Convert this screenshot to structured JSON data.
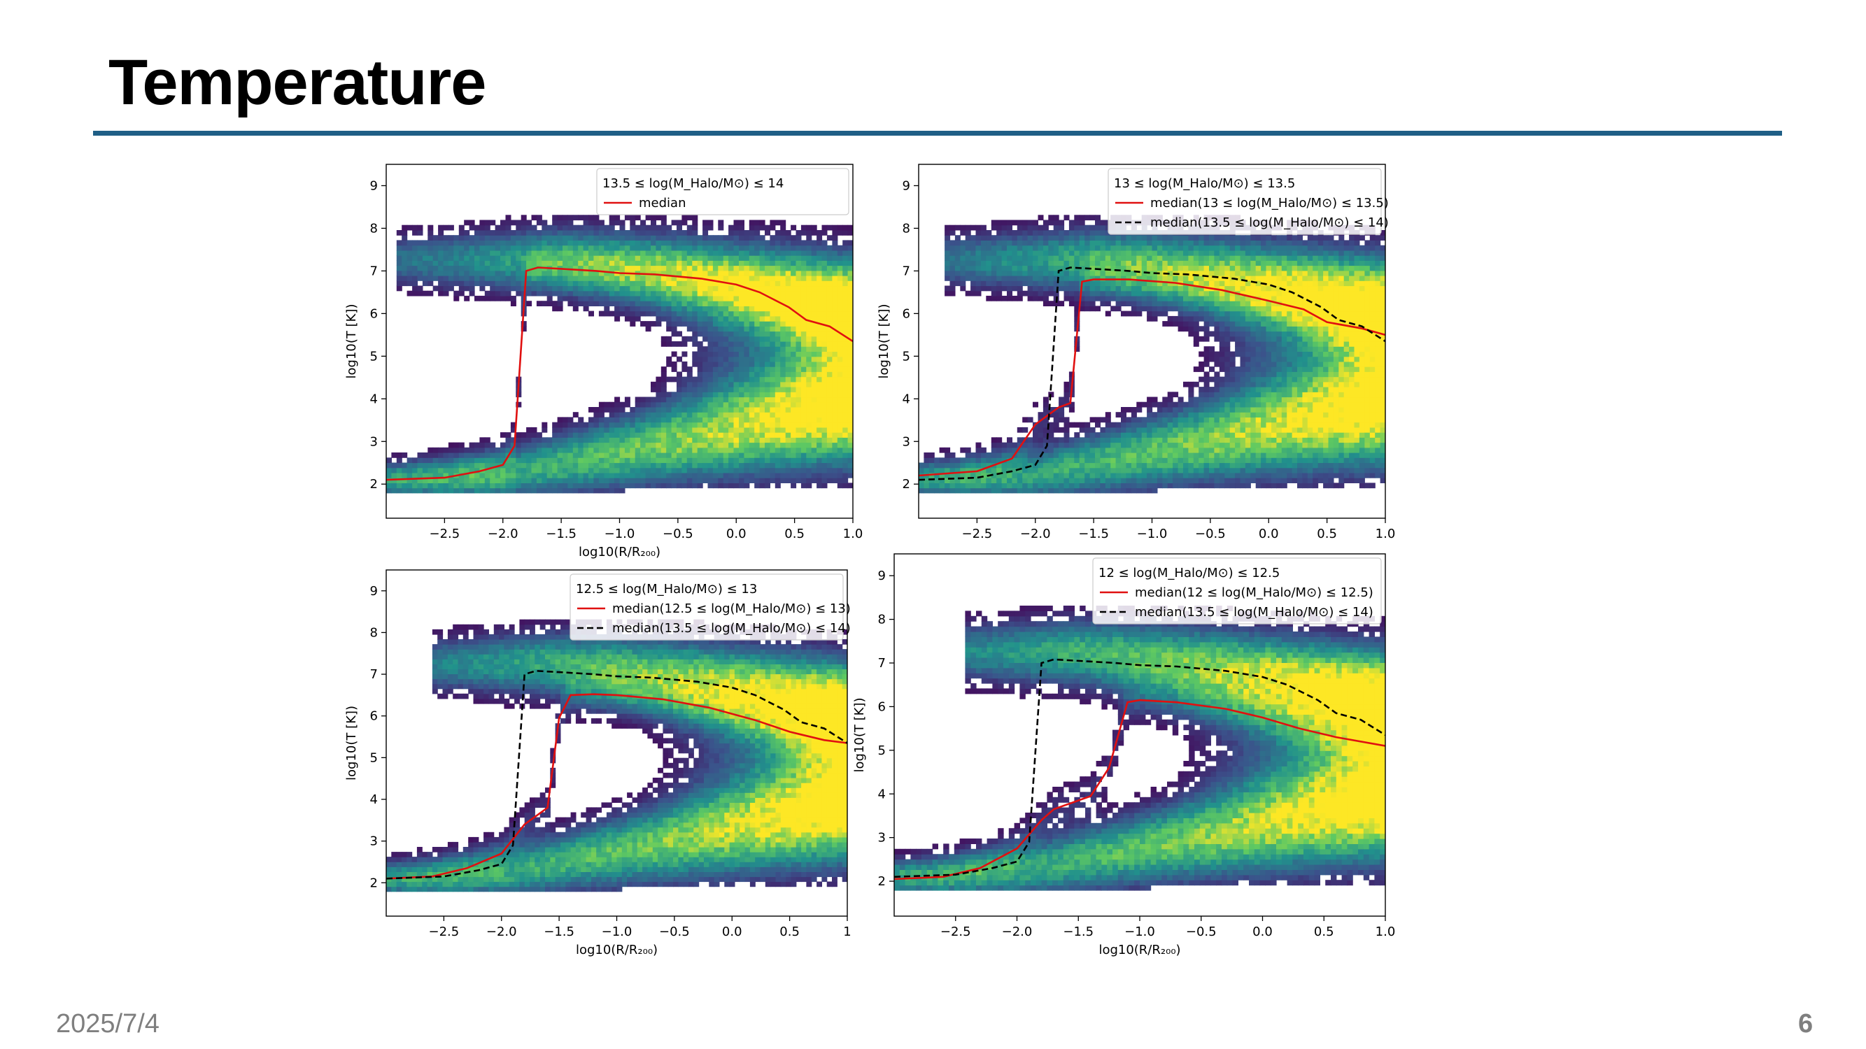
{
  "slide": {
    "title": "Temperature",
    "date": "2025/7/4",
    "page_number": "6"
  },
  "colors": {
    "rule": "#1f5f86",
    "median_red": "#e01010",
    "median_black": "#000000",
    "colormap": [
      "#440154",
      "#3b528b",
      "#21918c",
      "#5ec962",
      "#fde725"
    ]
  },
  "chart_data": [
    {
      "type": "heatmap",
      "title": "",
      "xlabel": "log10(R/R₂₀₀)",
      "ylabel": "log10(T [K])",
      "xlim": [
        -3.0,
        1.0
      ],
      "ylim": [
        1.2,
        9.5
      ],
      "xticks": [
        -2.5,
        -2.0,
        -1.5,
        -1.0,
        -0.5,
        0.0,
        0.5,
        1.0
      ],
      "xtick_labels": [
        "−2.5",
        "−2.0",
        "−1.5",
        "−1.0",
        "−0.5",
        "0.0",
        "0.5",
        "1.0"
      ],
      "yticks": [
        2,
        3,
        4,
        5,
        6,
        7,
        8,
        9
      ],
      "legend": {
        "title": "13.5 ≤ log(M_Halo/M⊙) ≤ 14",
        "entries": [
          {
            "label": "median",
            "style": "solid",
            "color": "#e01010"
          }
        ]
      },
      "series": [
        {
          "name": "median",
          "style": "solid",
          "x": [
            -3.0,
            -2.5,
            -2.2,
            -2.0,
            -1.9,
            -1.8,
            -1.7,
            -1.5,
            -1.2,
            -1.0,
            -0.7,
            -0.3,
            0.0,
            0.2,
            0.45,
            0.6,
            0.8,
            1.0
          ],
          "y": [
            2.1,
            2.15,
            2.3,
            2.45,
            2.9,
            7.0,
            7.08,
            7.05,
            7.0,
            6.95,
            6.92,
            6.82,
            6.68,
            6.5,
            6.15,
            5.85,
            5.7,
            5.35
          ]
        }
      ]
    },
    {
      "type": "heatmap",
      "title": "",
      "xlabel": "",
      "ylabel": "log10(T [K])",
      "xlim": [
        -3.0,
        1.0
      ],
      "ylim": [
        1.2,
        9.5
      ],
      "xticks": [
        -2.5,
        -2.0,
        -1.5,
        -1.0,
        -0.5,
        0.0,
        0.5,
        1.0
      ],
      "xtick_labels": [
        "−2.5",
        "−2.0",
        "−1.5",
        "−1.0",
        "−0.5",
        "0.0",
        "0.5",
        "1.0"
      ],
      "yticks": [
        2,
        3,
        4,
        5,
        6,
        7,
        8,
        9
      ],
      "legend": {
        "title": "13 ≤ log(M_Halo/M⊙) ≤ 13.5",
        "entries": [
          {
            "label": "median(13 ≤ log(M_Halo/M⊙) ≤ 13.5)",
            "style": "solid",
            "color": "#e01010"
          },
          {
            "label": "median(13.5 ≤ log(M_Halo/M⊙) ≤ 14)",
            "style": "dashed",
            "color": "#000000"
          }
        ]
      },
      "series": [
        {
          "name": "median(13 ≤ log(M_Halo/M⊙) ≤ 13.5)",
          "style": "solid",
          "x": [
            -3.0,
            -2.5,
            -2.2,
            -2.0,
            -1.8,
            -1.7,
            -1.6,
            -1.5,
            -1.2,
            -0.8,
            -0.4,
            0.0,
            0.3,
            0.5,
            0.8,
            1.0
          ],
          "y": [
            2.2,
            2.3,
            2.6,
            3.4,
            3.8,
            3.9,
            6.75,
            6.8,
            6.8,
            6.72,
            6.55,
            6.3,
            6.1,
            5.8,
            5.65,
            5.5
          ]
        },
        {
          "name": "median(13.5 ≤ log(M_Halo/M⊙) ≤ 14)",
          "style": "dashed",
          "x": [
            -3.0,
            -2.5,
            -2.2,
            -2.0,
            -1.9,
            -1.8,
            -1.7,
            -1.5,
            -1.2,
            -1.0,
            -0.7,
            -0.3,
            0.0,
            0.2,
            0.45,
            0.6,
            0.8,
            1.0
          ],
          "y": [
            2.1,
            2.15,
            2.3,
            2.45,
            2.9,
            7.0,
            7.08,
            7.05,
            7.0,
            6.95,
            6.92,
            6.82,
            6.68,
            6.5,
            6.15,
            5.85,
            5.7,
            5.35
          ]
        }
      ]
    },
    {
      "type": "heatmap",
      "title": "",
      "xlabel": "log10(R/R₂₀₀)",
      "ylabel": "log10(T [K])",
      "xlim": [
        -3.0,
        1.0
      ],
      "ylim": [
        1.2,
        9.5
      ],
      "xticks": [
        -2.5,
        -2.0,
        -1.5,
        -1.0,
        -0.5,
        0.0,
        0.5,
        1.0
      ],
      "xtick_labels": [
        "−2.5",
        "−2.0",
        "−1.5",
        "−1.0",
        "−0.5",
        "0.0",
        "0.5",
        "1"
      ],
      "yticks": [
        2,
        3,
        4,
        5,
        6,
        7,
        8,
        9
      ],
      "legend": {
        "title": "12.5 ≤ log(M_Halo/M⊙) ≤ 13",
        "entries": [
          {
            "label": "median(12.5 ≤ log(M_Halo/M⊙) ≤ 13)",
            "style": "solid",
            "color": "#e01010"
          },
          {
            "label": "median(13.5 ≤ log(M_Halo/M⊙) ≤ 14)",
            "style": "dashed",
            "color": "#000000"
          }
        ]
      },
      "series": [
        {
          "name": "median(12.5 ≤ log(M_Halo/M⊙) ≤ 13)",
          "style": "solid",
          "x": [
            -3.0,
            -2.6,
            -2.3,
            -2.0,
            -1.8,
            -1.6,
            -1.5,
            -1.4,
            -1.2,
            -1.0,
            -0.6,
            -0.2,
            0.2,
            0.5,
            0.8,
            1.0
          ],
          "y": [
            2.1,
            2.15,
            2.35,
            2.7,
            3.4,
            3.8,
            5.95,
            6.5,
            6.52,
            6.5,
            6.4,
            6.2,
            5.9,
            5.62,
            5.42,
            5.35
          ]
        },
        {
          "name": "median(13.5 ≤ log(M_Halo/M⊙) ≤ 14)",
          "style": "dashed",
          "x": [
            -3.0,
            -2.5,
            -2.2,
            -2.0,
            -1.9,
            -1.8,
            -1.7,
            -1.5,
            -1.2,
            -1.0,
            -0.7,
            -0.3,
            0.0,
            0.2,
            0.45,
            0.6,
            0.8,
            1.0
          ],
          "y": [
            2.1,
            2.15,
            2.3,
            2.45,
            2.9,
            7.0,
            7.08,
            7.05,
            7.0,
            6.95,
            6.92,
            6.82,
            6.68,
            6.5,
            6.15,
            5.85,
            5.7,
            5.35
          ]
        }
      ]
    },
    {
      "type": "heatmap",
      "title": "",
      "xlabel": "log10(R/R₂₀₀)",
      "ylabel": "log10(T [K])",
      "xlim": [
        -3.0,
        1.0
      ],
      "ylim": [
        1.2,
        9.5
      ],
      "xticks": [
        -2.5,
        -2.0,
        -1.5,
        -1.0,
        -0.5,
        0.0,
        0.5,
        1.0
      ],
      "xtick_labels": [
        "−2.5",
        "−2.0",
        "−1.5",
        "−1.0",
        "−0.5",
        "0.0",
        "0.5",
        "1.0"
      ],
      "yticks": [
        2,
        3,
        4,
        5,
        6,
        7,
        8,
        9
      ],
      "legend": {
        "title": "12 ≤ log(M_Halo/M⊙) ≤ 12.5",
        "entries": [
          {
            "label": "median(12 ≤ log(M_Halo/M⊙) ≤ 12.5)",
            "style": "solid",
            "color": "#e01010"
          },
          {
            "label": "median(13.5 ≤ log(M_Halo/M⊙) ≤ 14)",
            "style": "dashed",
            "color": "#000000"
          }
        ]
      },
      "series": [
        {
          "name": "median(12 ≤ log(M_Halo/M⊙) ≤ 12.5)",
          "style": "solid",
          "x": [
            -3.0,
            -2.6,
            -2.3,
            -2.0,
            -1.8,
            -1.7,
            -1.4,
            -1.25,
            -1.1,
            -1.0,
            -0.7,
            -0.3,
            0.0,
            0.3,
            0.6,
            1.0
          ],
          "y": [
            2.05,
            2.1,
            2.3,
            2.75,
            3.4,
            3.65,
            3.95,
            4.6,
            6.1,
            6.15,
            6.1,
            5.95,
            5.75,
            5.5,
            5.3,
            5.1
          ]
        },
        {
          "name": "median(13.5 ≤ log(M_Halo/M⊙) ≤ 14)",
          "style": "dashed",
          "x": [
            -3.0,
            -2.5,
            -2.2,
            -2.0,
            -1.9,
            -1.8,
            -1.7,
            -1.5,
            -1.2,
            -1.0,
            -0.7,
            -0.3,
            0.0,
            0.2,
            0.45,
            0.6,
            0.8,
            1.0
          ],
          "y": [
            2.1,
            2.15,
            2.3,
            2.45,
            2.9,
            7.0,
            7.08,
            7.05,
            7.0,
            6.95,
            6.92,
            6.82,
            6.68,
            6.5,
            6.15,
            5.85,
            5.7,
            5.35
          ]
        }
      ]
    }
  ]
}
